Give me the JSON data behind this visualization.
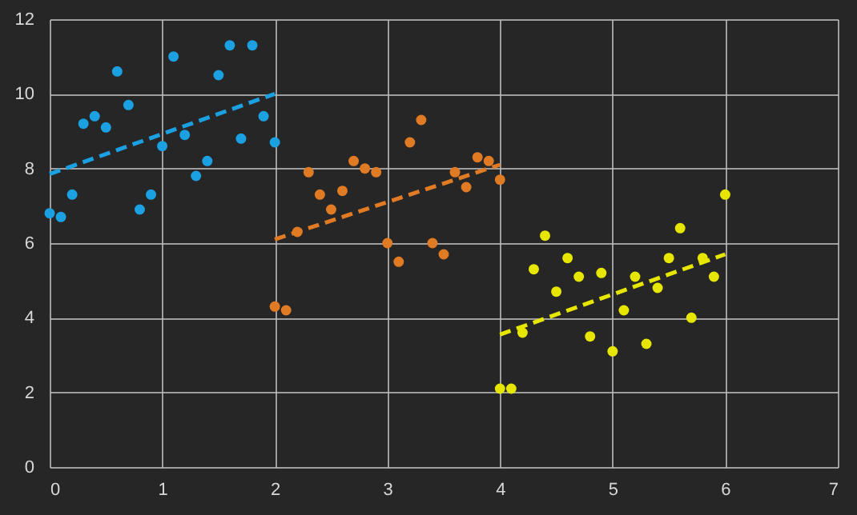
{
  "chart_data": {
    "type": "scatter",
    "xlim": [
      0,
      7
    ],
    "ylim": [
      0,
      12
    ],
    "xticks": [
      0,
      1,
      2,
      3,
      4,
      5,
      6,
      7
    ],
    "yticks": [
      0,
      2,
      4,
      6,
      8,
      10,
      12
    ],
    "grid": true,
    "marker": "circle",
    "series": [
      {
        "color": "#1ba1e2",
        "x": [
          0.0,
          0.1,
          0.2,
          0.3,
          0.4,
          0.5,
          0.6,
          0.7,
          0.8,
          0.9,
          1.0,
          1.1,
          1.2,
          1.3,
          1.4,
          1.5,
          1.6,
          1.7,
          1.8,
          1.9,
          2.0
        ],
        "values": [
          6.8,
          6.7,
          7.3,
          9.2,
          9.4,
          9.1,
          10.6,
          9.7,
          6.9,
          7.3,
          8.6,
          11.0,
          8.9,
          7.8,
          8.2,
          10.5,
          11.3,
          8.8,
          11.3,
          9.4,
          8.7
        ]
      },
      {
        "color": "#e07b24",
        "x": [
          2.0,
          2.1,
          2.2,
          2.3,
          2.4,
          2.5,
          2.6,
          2.7,
          2.8,
          2.9,
          3.0,
          3.1,
          3.2,
          3.3,
          3.4,
          3.5,
          3.6,
          3.7,
          3.8,
          3.9,
          4.0
        ],
        "values": [
          4.3,
          4.2,
          6.3,
          7.9,
          7.3,
          6.9,
          7.4,
          8.2,
          8.0,
          7.9,
          6.0,
          5.5,
          8.7,
          9.3,
          6.0,
          5.7,
          7.9,
          7.5,
          8.3,
          8.2,
          7.7
        ]
      },
      {
        "color": "#e6e600",
        "x": [
          4.0,
          4.1,
          4.2,
          4.3,
          4.4,
          4.5,
          4.6,
          4.7,
          4.8,
          4.9,
          5.0,
          5.1,
          5.2,
          5.3,
          5.4,
          5.5,
          5.6,
          5.7,
          5.8,
          5.9,
          6.0
        ],
        "values": [
          2.1,
          2.1,
          3.6,
          5.3,
          6.2,
          4.7,
          5.6,
          5.1,
          3.5,
          5.2,
          3.1,
          4.2,
          5.1,
          3.3,
          4.8,
          5.6,
          6.4,
          4.0,
          5.6,
          5.1,
          7.3
        ]
      },
      {
        "type": "line",
        "color": "#1ba1e2",
        "line_style": "dashed",
        "marker": "none",
        "x": [
          0,
          2
        ],
        "values": [
          7.85,
          10.0
        ]
      },
      {
        "type": "line",
        "color": "#e07b24",
        "line_style": "dashed",
        "marker": "none",
        "x": [
          2,
          4
        ],
        "values": [
          6.1,
          8.1
        ]
      },
      {
        "type": "line",
        "color": "#e6e600",
        "line_style": "dashed",
        "marker": "none",
        "x": [
          4,
          6
        ],
        "values": [
          3.55,
          5.7
        ]
      }
    ]
  }
}
